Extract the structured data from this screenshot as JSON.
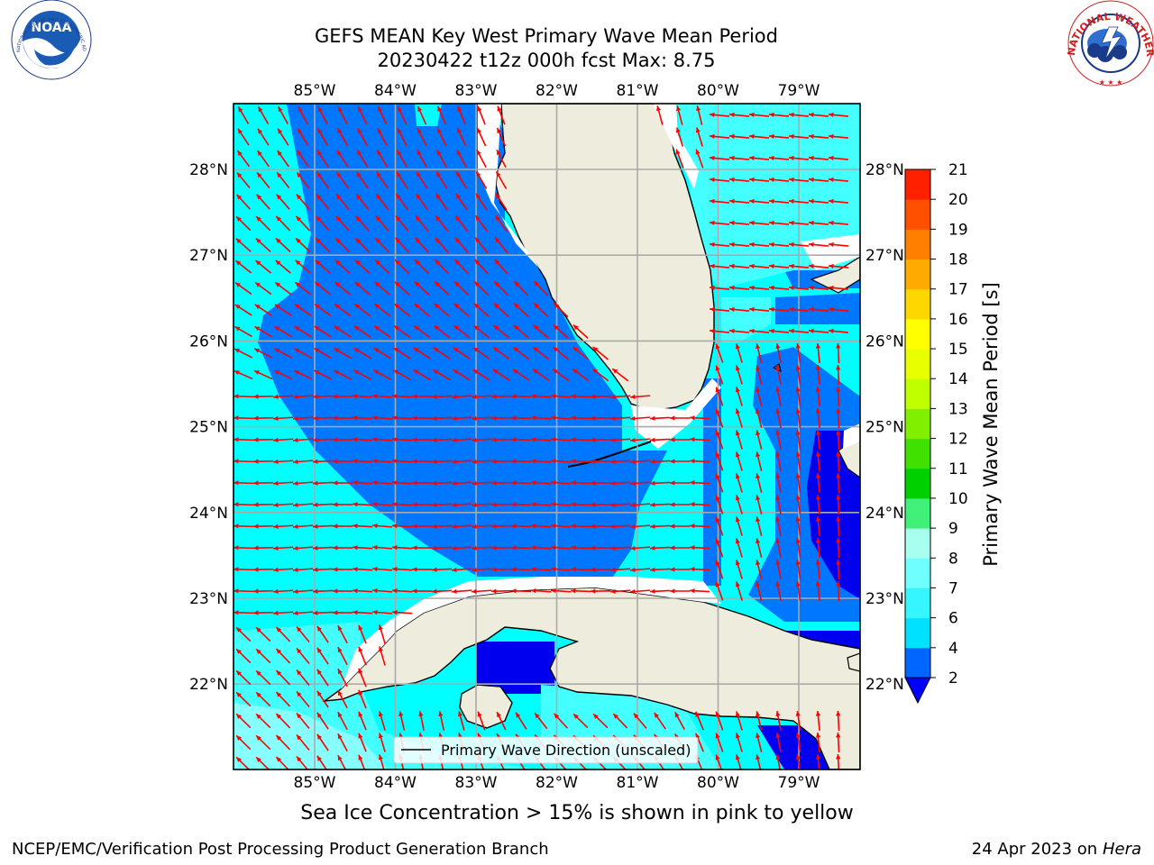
{
  "header": {
    "title_line1": "GEFS MEAN Key West Primary Wave Mean Period",
    "title_line2": "20230422 t12z 000h fcst   Max: 8.75"
  },
  "logos": {
    "noaa_text": "NOAA",
    "nws_ring_text": "NATIONAL WEATHER SERVICE",
    "noaa_ring_text": "NATIONAL OCEANIC AND ATMOSPHERIC ADMINISTRATION - U.S. DEPARTMENT OF COMMERCE"
  },
  "map": {
    "lon_labels": [
      "85°W",
      "84°W",
      "83°W",
      "82°W",
      "81°W",
      "80°W",
      "79°W"
    ],
    "lat_labels": [
      "28°N",
      "27°N",
      "26°N",
      "25°N",
      "24°N",
      "23°N",
      "22°N"
    ],
    "legend_label": "Primary Wave Direction (unscaled)",
    "grid": true,
    "arrow_color": "#ff0000",
    "land_color": "#eeecdc"
  },
  "colorbar": {
    "label": "Primary Wave Mean Period [s]",
    "ticks": [
      "2",
      "4",
      "6",
      "7",
      "8",
      "9",
      "10",
      "11",
      "12",
      "13",
      "14",
      "15",
      "16",
      "17",
      "18",
      "19",
      "20",
      "21"
    ],
    "colors": [
      "#0066ff",
      "#00e0ff",
      "#35f5ff",
      "#70ffff",
      "#a8fff0",
      "#40f078",
      "#00d000",
      "#40e000",
      "#80f000",
      "#c0ff00",
      "#e8ff00",
      "#ffff00",
      "#ffd700",
      "#ffaa00",
      "#ff8000",
      "#ff5000",
      "#ff2000",
      "#ff0000"
    ],
    "extend_color": "#0000ff"
  },
  "field_colors": {
    "period_2_4": "#0077ff",
    "period_4_6": "#00ffff",
    "period_6_7": "#44ffff",
    "period_7_8": "#88ffff",
    "period_below_2": "#0000ee"
  },
  "footer": {
    "ice_note": "Sea Ice Concentration > 15% is shown in pink to yellow",
    "credit": "NCEP/EMC/Verification Post Processing Product Generation Branch",
    "date_text": "24 Apr 2023 on ",
    "host": "Hera"
  }
}
